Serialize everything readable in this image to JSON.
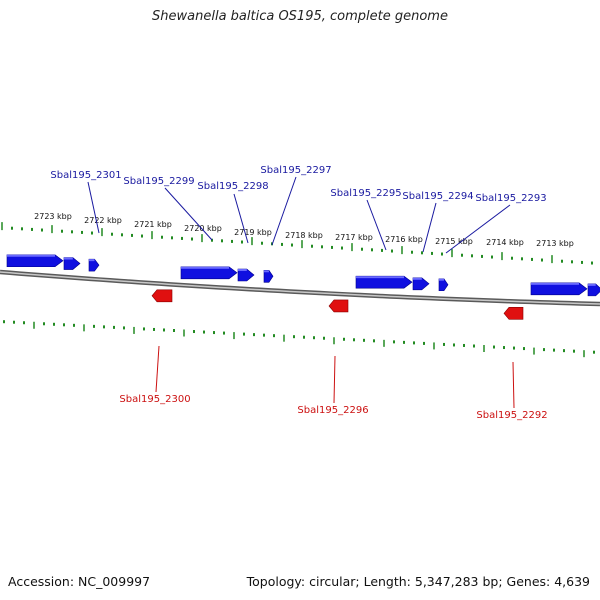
{
  "title": "Shewanella baltica OS195, complete genome",
  "footer": {
    "accession": "Accession: NC_009997",
    "summary": "Topology: circular; Length: 5,347,283 bp; Genes: 4,639"
  },
  "colors": {
    "forward": "#1010e0",
    "reverse": "#e01010",
    "tick": "#228b22",
    "backbone": "#888888"
  },
  "kbp_labels": [
    "2723 kbp",
    "2722 kbp",
    "2721 kbp",
    "2720 kbp",
    "2719 kbp",
    "2718 kbp",
    "2717 kbp",
    "2716 kbp",
    "2715 kbp",
    "2714 kbp",
    "2713 kbp"
  ],
  "forward_genes": [
    "Sbal195_2301",
    "Sbal195_2299",
    "Sbal195_2298",
    "Sbal195_2297",
    "Sbal195_2295",
    "Sbal195_2294",
    "Sbal195_2293"
  ],
  "reverse_genes": [
    "Sbal195_2300",
    "Sbal195_2296",
    "Sbal195_2292"
  ]
}
